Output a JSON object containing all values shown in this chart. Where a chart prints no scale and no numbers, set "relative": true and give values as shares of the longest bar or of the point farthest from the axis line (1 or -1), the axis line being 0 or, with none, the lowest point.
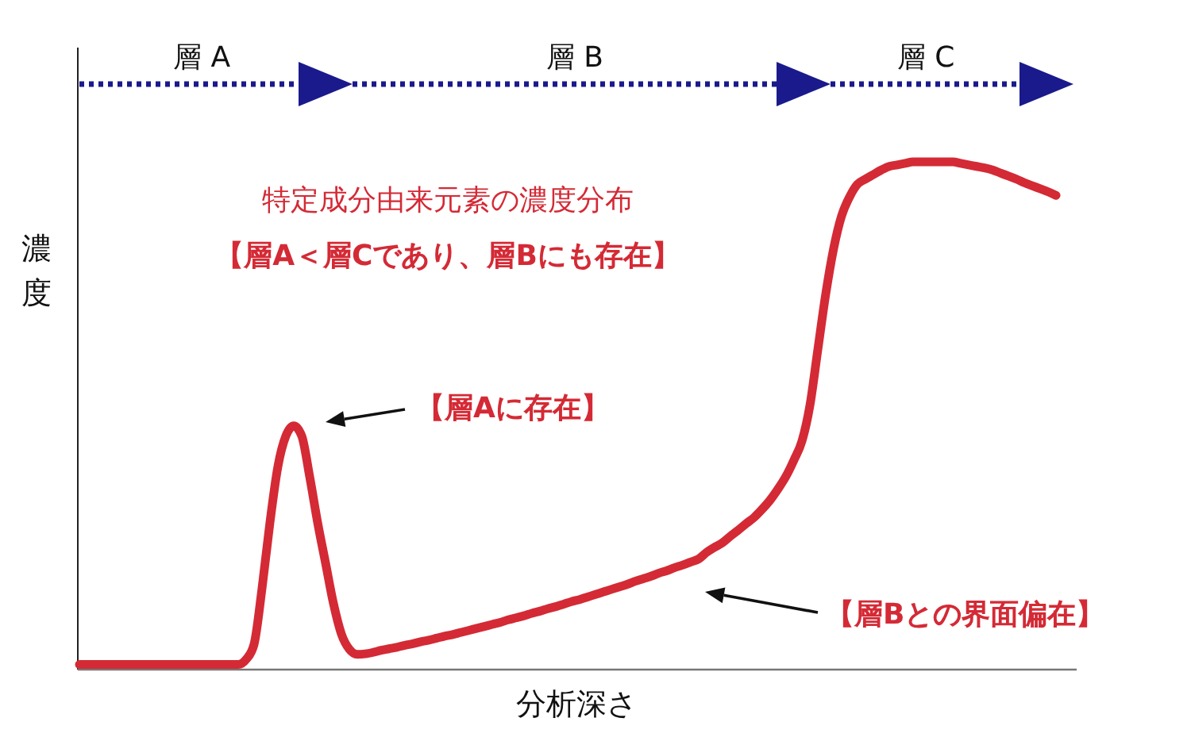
{
  "chart_data": {
    "type": "line",
    "relative": true,
    "title": "特定成分由来元素の濃度分布",
    "subtitle": "【層A＜層Cであり、層Bにも存在】",
    "xlabel": "分析深さ",
    "ylabel": "濃度",
    "marker": "none",
    "line_style": "solid",
    "categories": [
      null,
      null,
      null,
      null,
      null,
      null,
      null,
      null,
      null,
      null,
      null,
      null,
      null,
      null,
      null,
      null,
      null,
      null,
      null,
      null,
      null,
      null,
      null,
      null,
      null,
      null,
      null,
      null,
      null,
      null,
      null,
      null,
      null,
      null,
      null,
      null,
      null,
      null,
      null,
      null,
      null,
      null,
      null,
      null,
      null,
      null,
      null,
      null,
      null,
      null,
      null,
      null,
      null,
      null,
      null,
      null,
      null,
      null,
      null,
      null,
      null,
      null,
      null,
      null,
      null,
      null,
      null,
      null,
      null,
      null,
      null,
      null,
      null,
      null,
      null,
      null,
      null,
      null,
      null,
      null,
      null,
      null,
      null,
      null,
      null,
      null,
      null,
      null,
      null,
      null,
      null,
      null,
      null,
      null,
      null,
      null,
      null,
      null,
      null,
      null,
      null,
      null,
      null,
      null,
      null,
      null,
      null,
      null,
      null,
      null,
      null,
      null,
      null,
      null,
      null,
      null,
      null,
      null,
      null,
      null,
      null,
      null,
      null,
      null
    ],
    "series": [
      {
        "color": "#d42a35",
        "values": [
          0.01,
          0.01,
          0.01,
          0.01,
          0.01,
          0.01,
          0.01,
          0.01,
          0.01,
          0.01,
          0.01,
          0.01,
          0.01,
          0.01,
          0.01,
          0.01,
          0.01,
          0.01,
          0.01,
          0.01,
          0.01,
          0.02,
          0.05,
          0.16,
          0.29,
          0.4,
          0.46,
          0.48,
          0.46,
          0.38,
          0.29,
          0.21,
          0.13,
          0.07,
          0.04,
          0.03,
          0.031,
          0.034,
          0.038,
          0.041,
          0.044,
          0.048,
          0.051,
          0.055,
          0.058,
          0.062,
          0.066,
          0.069,
          0.073,
          0.077,
          0.081,
          0.085,
          0.089,
          0.093,
          0.098,
          0.102,
          0.106,
          0.111,
          0.115,
          0.12,
          0.124,
          0.129,
          0.134,
          0.138,
          0.143,
          0.148,
          0.153,
          0.158,
          0.163,
          0.168,
          0.174,
          0.179,
          0.184,
          0.19,
          0.195,
          0.201,
          0.206,
          0.212,
          0.218,
          0.231,
          0.241,
          0.25,
          0.263,
          0.275,
          0.288,
          0.3,
          0.316,
          0.334,
          0.356,
          0.381,
          0.413,
          0.45,
          0.52,
          0.63,
          0.74,
          0.83,
          0.894,
          0.931,
          0.956,
          0.966,
          0.975,
          0.984,
          0.991,
          0.994,
          0.997,
          1,
          1,
          1,
          1,
          1,
          1,
          0.997,
          0.994,
          0.991,
          0.988,
          0.984,
          0.978,
          0.972,
          0.966,
          0.959,
          0.953,
          0.947,
          0.941,
          0.934
        ]
      }
    ],
    "annotations": [
      "層 A",
      "層 B",
      "層 C",
      "【層Aに存在】",
      "【層Bとの界面偏在】"
    ]
  }
}
